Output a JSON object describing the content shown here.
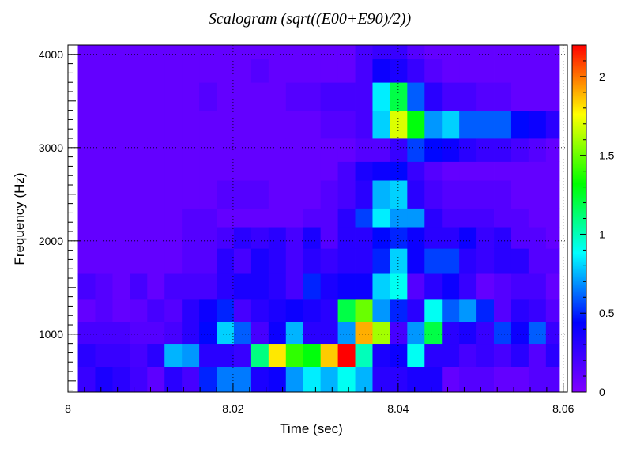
{
  "chart_data": {
    "type": "heatmap",
    "title": "Scalogram (sqrt((E00+E90)/2))",
    "xlabel": "Time (sec)",
    "ylabel": "Frequency (Hz)",
    "xlim": [
      8.0,
      8.0605
    ],
    "ylim": [
      380,
      4100
    ],
    "x_ticks": [
      "8",
      "8.02",
      "8.04",
      "8.06"
    ],
    "x_tick_values": [
      8.0,
      8.02,
      8.04,
      8.06
    ],
    "y_ticks": [
      "1000",
      "2000",
      "3000",
      "4000"
    ],
    "y_tick_values": [
      1000,
      2000,
      3000,
      4000
    ],
    "colorbar": {
      "range": [
        0,
        2.2
      ],
      "ticks": [
        "0",
        "0.5",
        "1",
        "1.5",
        "2"
      ],
      "tick_values": [
        0,
        0.5,
        1,
        1.5,
        2
      ]
    },
    "grid": true,
    "palette": [
      "#8000ff",
      "#4000ff",
      "#0000ff",
      "#0080ff",
      "#00ffff",
      "#00ff80",
      "#00ff00",
      "#80ff00",
      "#ffff00",
      "#ff8000",
      "#ff0000"
    ],
    "cell_width_sec": 0.0021,
    "time_start": 8.0012,
    "time_grid": [
      {
        "f_low": 380,
        "f_high": 650,
        "values": [
          0.25,
          0.35,
          0.3,
          0.22,
          0.12,
          0.3,
          0.2,
          0.5,
          0.65,
          0.65,
          0.35,
          0.4,
          0.7,
          0.85,
          0.75,
          0.9,
          0.75,
          0.3,
          0.3,
          0.35,
          0.35,
          0.1,
          0.15,
          0.15,
          0.1,
          0.1,
          0.15,
          0.15,
          0.1,
          0.1,
          0.12,
          0.1,
          0.15,
          0.1,
          0.1
        ]
      },
      {
        "f_low": 650,
        "f_high": 900,
        "values": [
          0.3,
          0.25,
          0.25,
          0.2,
          0.3,
          0.75,
          0.7,
          0.3,
          0.3,
          0.25,
          1.1,
          1.8,
          1.4,
          1.3,
          1.85,
          2.2,
          1.0,
          0.35,
          0.4,
          0.9,
          0.3,
          0.3,
          0.2,
          0.25,
          0.2,
          0.3,
          0.15,
          0.3,
          0.25,
          0.25,
          0.2,
          0.3,
          0.2,
          0.2,
          0.25
        ]
      },
      {
        "f_low": 900,
        "f_high": 1130,
        "values": [
          0.2,
          0.2,
          0.2,
          0.15,
          0.15,
          0.2,
          0.3,
          0.45,
          0.8,
          0.6,
          0.2,
          0.4,
          0.75,
          0.3,
          0.3,
          0.7,
          1.9,
          1.6,
          0.2,
          0.7,
          1.2,
          0.3,
          0.35,
          0.25,
          0.55,
          0.4,
          0.6,
          0.25,
          0.5,
          0.2,
          0.2,
          0.15,
          0.15,
          0.1,
          0.1
        ]
      },
      {
        "f_low": 1130,
        "f_high": 1380,
        "values": [
          0.1,
          0.15,
          0.1,
          0.12,
          0.2,
          0.15,
          0.3,
          0.4,
          0.5,
          0.2,
          0.3,
          0.35,
          0.4,
          0.35,
          0.3,
          1.2,
          1.5,
          0.7,
          0.5,
          0.3,
          0.9,
          0.6,
          0.7,
          0.5,
          0.15,
          0.3,
          0.25,
          0.15,
          0.2,
          0.2,
          0.1,
          0.15,
          0.1,
          0.1,
          0.1
        ]
      },
      {
        "f_low": 1380,
        "f_high": 1650,
        "values": [
          0.2,
          0.15,
          0.1,
          0.2,
          0.1,
          0.2,
          0.2,
          0.2,
          0.3,
          0.35,
          0.35,
          0.3,
          0.2,
          0.5,
          0.35,
          0.4,
          0.4,
          0.8,
          0.9,
          0.15,
          0.3,
          0.4,
          0.25,
          0.1,
          0.15,
          0.2,
          0.2,
          0.1,
          0.15,
          0.1,
          0.1,
          0.1,
          0.1,
          0.1,
          0.1
        ]
      },
      {
        "f_low": 1650,
        "f_high": 1920,
        "values": [
          0.1,
          0.1,
          0.1,
          0.1,
          0.1,
          0.1,
          0.15,
          0.15,
          0.3,
          0.2,
          0.35,
          0.3,
          0.2,
          0.3,
          0.25,
          0.3,
          0.3,
          0.5,
          0.8,
          0.4,
          0.55,
          0.55,
          0.3,
          0.25,
          0.3,
          0.3,
          0.15,
          0.15,
          0.1,
          0.1,
          0.1,
          0.1,
          0.1,
          0.1,
          0.1
        ]
      },
      {
        "f_low": 1920,
        "f_high": 2150,
        "values": [
          0.1,
          0.1,
          0.1,
          0.1,
          0.1,
          0.1,
          0.15,
          0.15,
          0.2,
          0.3,
          0.25,
          0.3,
          0.2,
          0.35,
          0.15,
          0.3,
          0.3,
          0.45,
          0.5,
          0.4,
          0.3,
          0.3,
          0.4,
          0.25,
          0.3,
          0.15,
          0.15,
          0.1,
          0.1,
          0.1,
          0.1,
          0.1,
          0.1,
          0.1,
          0.1
        ]
      },
      {
        "f_low": 2150,
        "f_high": 2350,
        "values": [
          0.1,
          0.1,
          0.1,
          0.1,
          0.1,
          0.1,
          0.15,
          0.15,
          0.1,
          0.1,
          0.1,
          0.1,
          0.1,
          0.15,
          0.15,
          0.3,
          0.55,
          0.85,
          0.7,
          0.7,
          0.3,
          0.2,
          0.2,
          0.2,
          0.15,
          0.15,
          0.1,
          0.1,
          0.1,
          0.1,
          0.1,
          0.1,
          0.1,
          0.1,
          0.1
        ]
      },
      {
        "f_low": 2350,
        "f_high": 2650,
        "values": [
          0.1,
          0.1,
          0.1,
          0.1,
          0.1,
          0.1,
          0.1,
          0.1,
          0.15,
          0.15,
          0.15,
          0.1,
          0.1,
          0.1,
          0.15,
          0.2,
          0.3,
          0.75,
          0.8,
          0.3,
          0.2,
          0.15,
          0.15,
          0.15,
          0.15,
          0.1,
          0.1,
          0.1,
          0.1,
          0.1,
          0.1,
          0.1,
          0.1,
          0.1,
          0.1
        ]
      },
      {
        "f_low": 2650,
        "f_high": 2850,
        "values": [
          0.1,
          0.1,
          0.1,
          0.1,
          0.1,
          0.1,
          0.1,
          0.1,
          0.1,
          0.1,
          0.1,
          0.1,
          0.1,
          0.1,
          0.1,
          0.2,
          0.35,
          0.4,
          0.45,
          0.25,
          0.15,
          0.1,
          0.1,
          0.1,
          0.1,
          0.1,
          0.1,
          0.1,
          0.1,
          0.1,
          0.1,
          0.1,
          0.1,
          0.1,
          0.1
        ]
      },
      {
        "f_low": 2850,
        "f_high": 3100,
        "values": [
          0.1,
          0.1,
          0.1,
          0.1,
          0.1,
          0.1,
          0.1,
          0.1,
          0.1,
          0.1,
          0.1,
          0.1,
          0.1,
          0.1,
          0.1,
          0.1,
          0.15,
          0.15,
          0.25,
          0.55,
          0.45,
          0.4,
          0.3,
          0.25,
          0.25,
          0.2,
          0.15,
          0.1,
          0.1,
          0.1,
          0.1,
          0.1,
          0.1,
          0.1,
          0.1
        ]
      },
      {
        "f_low": 3100,
        "f_high": 3400,
        "values": [
          0.1,
          0.1,
          0.1,
          0.1,
          0.1,
          0.1,
          0.1,
          0.1,
          0.1,
          0.1,
          0.1,
          0.1,
          0.1,
          0.1,
          0.15,
          0.15,
          0.2,
          0.8,
          1.7,
          1.3,
          0.7,
          0.8,
          0.6,
          0.6,
          0.6,
          0.45,
          0.4,
          0.3,
          0.2,
          0.1,
          0.1,
          0.1,
          0.1,
          0.1,
          0.1
        ]
      },
      {
        "f_low": 3400,
        "f_high": 3700,
        "values": [
          0.1,
          0.1,
          0.1,
          0.1,
          0.1,
          0.1,
          0.1,
          0.15,
          0.1,
          0.1,
          0.1,
          0.1,
          0.15,
          0.15,
          0.2,
          0.2,
          0.2,
          0.85,
          1.2,
          0.6,
          0.3,
          0.2,
          0.2,
          0.15,
          0.15,
          0.1,
          0.1,
          0.1,
          0.1,
          0.1,
          0.1,
          0.1,
          0.1,
          0.1,
          0.1
        ]
      },
      {
        "f_low": 3700,
        "f_high": 3950,
        "values": [
          0.1,
          0.1,
          0.1,
          0.1,
          0.1,
          0.1,
          0.1,
          0.1,
          0.1,
          0.1,
          0.15,
          0.1,
          0.1,
          0.1,
          0.1,
          0.1,
          0.2,
          0.4,
          0.35,
          0.25,
          0.15,
          0.1,
          0.1,
          0.1,
          0.1,
          0.1,
          0.1,
          0.1,
          0.1,
          0.1,
          0.1,
          0.1,
          0.1,
          0.1,
          0.1
        ]
      },
      {
        "f_low": 3950,
        "f_high": 4100,
        "values": [
          0.1,
          0.1,
          0.1,
          0.1,
          0.1,
          0.1,
          0.1,
          0.1,
          0.1,
          0.1,
          0.1,
          0.1,
          0.1,
          0.1,
          0.1,
          0.1,
          0.2,
          0.25,
          0.25,
          0.15,
          0.1,
          0.1,
          0.1,
          0.1,
          0.1,
          0.1,
          0.1,
          0.1,
          0.1,
          0.1,
          0.1,
          0.1,
          0.1,
          0.1,
          0.1
        ]
      }
    ]
  }
}
